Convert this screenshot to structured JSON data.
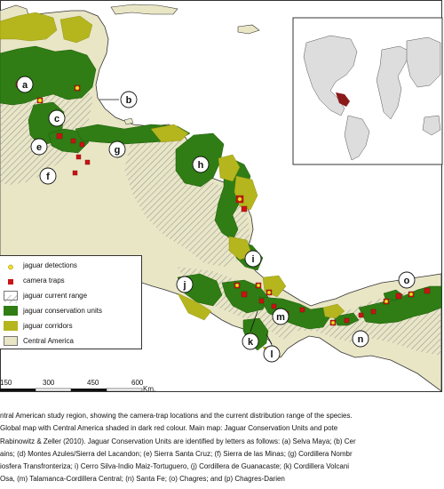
{
  "legend": {
    "items": [
      {
        "key": "jaguar_detections",
        "label": "jaguar detections"
      },
      {
        "key": "camera_traps",
        "label": "camera traps"
      },
      {
        "key": "jaguar_current_range",
        "label": "jaguar current range"
      },
      {
        "key": "jaguar_conservation_units",
        "label": "jaguar conservation units"
      },
      {
        "key": "jaguar_corridors",
        "label": "jaguar corridors"
      },
      {
        "key": "central_america",
        "label": "Central America"
      }
    ]
  },
  "scale_bar": {
    "labels": [
      "150",
      "300",
      "450",
      "600"
    ],
    "unit": "Km."
  },
  "unit_letters": [
    "a",
    "b",
    "c",
    "e",
    "f",
    "g",
    "h",
    "i",
    "j",
    "k",
    "l",
    "m",
    "n",
    "o"
  ],
  "caption": {
    "lines": [
      "ntral American study region, showing the camera-trap locations and the current distribution range of the species.",
      "Global map with Central America shaded in dark red colour. Main map: Jaguar Conservation Units and pote",
      "Rabinowitz & Zeller (2010). Jaguar Conservation Units are identified by letters as follows: (a) Selva Maya; (b) Cer",
      "ains; (d) Montes Azules/Sierra del Lacandon; (e) Sierra Santa Cruz; (f) Sierra de las Minas; (g) Cordillera Nombr",
      "iosfera Transfronteriza; i) Cerro Silva-Indio Maiz-Tortuguero, (j) Cordillera de Guanacaste; (k) Cordillera Volcani",
      "Osa, (m) Talamanca-Cordillera Central; (n) Santa Fe; (o) Chagres; and (p) Chagres-Darien"
    ]
  },
  "colors": {
    "ocean": "#ffffff",
    "land": "#e9e6c6",
    "conservation_units": "#2f7d14",
    "corridors": "#b5b51e",
    "range_hatch": "#9a9a9a",
    "camera_trap": "#c81414",
    "detection": "#f0e020",
    "outline": "#333333",
    "highlight_region": "#8b1a1a",
    "world_land": "#dddddd"
  }
}
